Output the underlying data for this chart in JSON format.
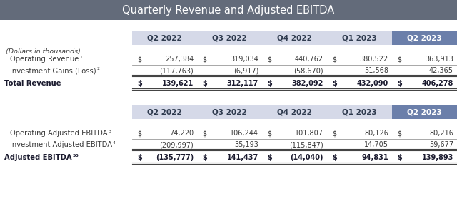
{
  "title": "Quarterly Revenue and Adjusted EBITDA",
  "title_bg": "#636b7a",
  "title_color": "#ffffff",
  "header_bg_light": "#d5d9e8",
  "header_bg_dark": "#6b7faa",
  "header_text_light": "#2e3a4e",
  "header_text_dark": "#ffffff",
  "body_bg": "#ffffff",
  "body_text": "#3a3a3a",
  "bold_text": "#1a1a2e",
  "columns": [
    "Q2 2022",
    "Q3 2022",
    "Q4 2022",
    "Q1 2023",
    "Q2 2023"
  ],
  "table1_subtitle": "(Dollars in thousands)",
  "table1_rows": [
    {
      "label": "Operating Revenue (1)",
      "label_super": true,
      "bold": false,
      "dollar_sign": true,
      "values": [
        "257,384",
        "319,034",
        "440,762",
        "380,522",
        "363,913"
      ]
    },
    {
      "label": "Investment Gains (Loss) (2)",
      "label_super": true,
      "bold": false,
      "dollar_sign": false,
      "values": [
        "(117,763)",
        "(6,917)",
        "(58,670)",
        "51,568",
        "42,365"
      ]
    },
    {
      "label": "Total Revenue",
      "label_super": false,
      "bold": true,
      "dollar_sign": true,
      "values": [
        "139,621",
        "312,117",
        "382,092",
        "432,090",
        "406,278"
      ]
    }
  ],
  "table2_rows": [
    {
      "label": "Operating Adjusted EBITDA (3)",
      "label_super": true,
      "bold": false,
      "dollar_sign": true,
      "values": [
        "74,220",
        "106,244",
        "101,807",
        "80,126",
        "80,216"
      ]
    },
    {
      "label": "Investment Adjusted EBITDA (4)",
      "label_super": true,
      "bold": false,
      "dollar_sign": false,
      "values": [
        "(209,997)",
        "35,193",
        "(115,847)",
        "14,705",
        "59,677"
      ]
    },
    {
      "label": "Adjusted EBITDA (5)(6)",
      "label_super": true,
      "bold": true,
      "dollar_sign": true,
      "values": [
        "(135,777)",
        "141,437",
        "(14,040)",
        "94,831",
        "139,893"
      ]
    }
  ]
}
